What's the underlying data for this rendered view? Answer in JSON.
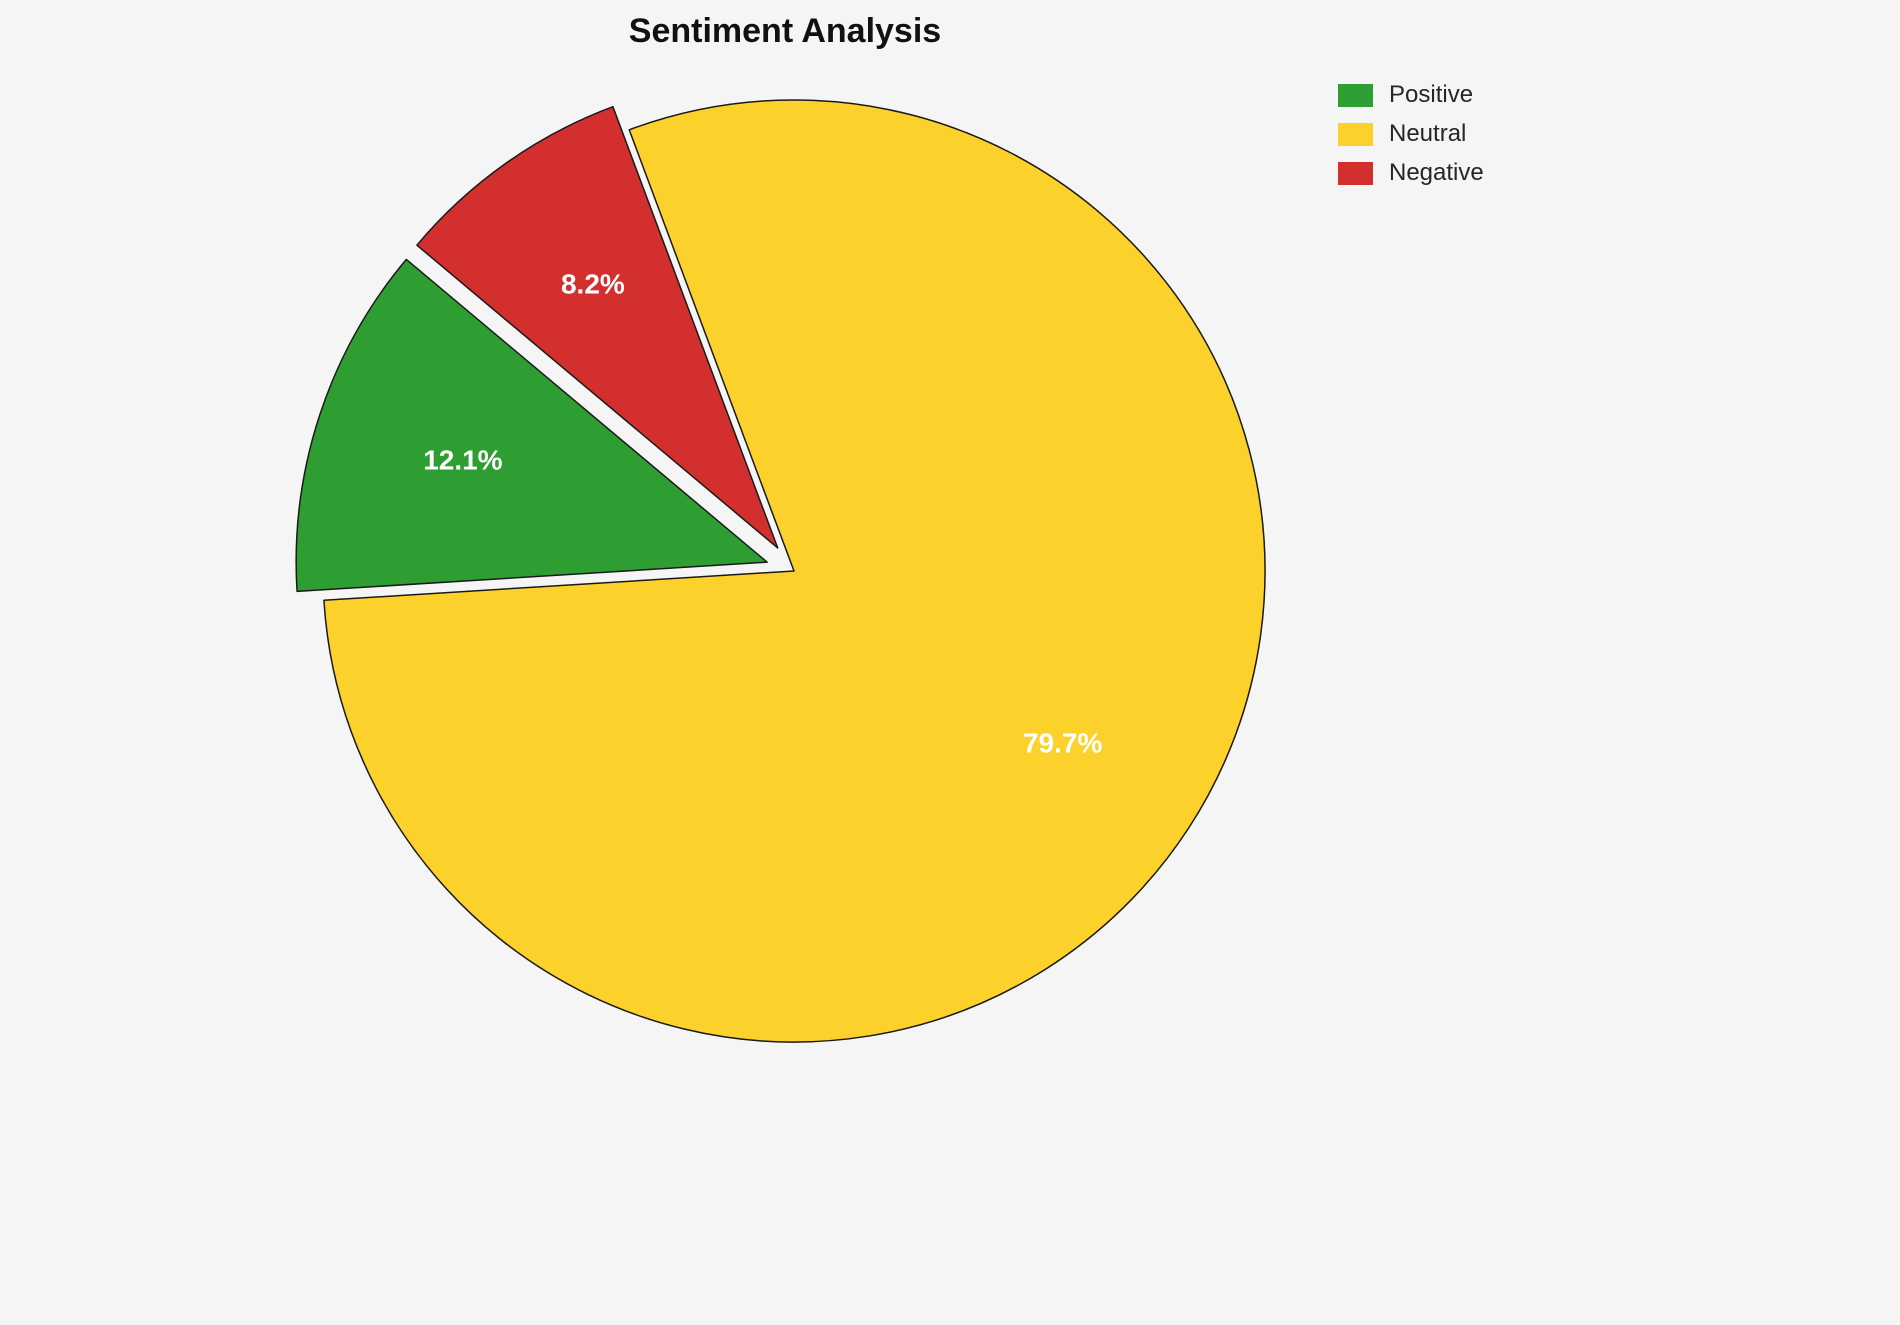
{
  "title": "Sentiment Analysis",
  "chart_data": {
    "type": "pie",
    "title": "Sentiment Analysis",
    "total": 100,
    "slices": [
      {
        "label": "Positive",
        "value": 12.1,
        "pct_label": "12.1%",
        "color": "#2E9E33",
        "explode": 0.06
      },
      {
        "label": "Neutral",
        "value": 79.7,
        "pct_label": "79.7%",
        "color": "#FCD12B",
        "explode": 0
      },
      {
        "label": "Negative",
        "value": 8.2,
        "pct_label": "8.2%",
        "color": "#D32F2F",
        "explode": 0.06
      }
    ],
    "start_angle": 140,
    "direction": "counterclockwise",
    "slice_edge_color": "#1a1a1a",
    "slice_label_color": "#ffffff",
    "background": "#f5f5f5",
    "legend": {
      "position": "upper right",
      "entries": [
        {
          "label": "Positive",
          "color": "#2E9E33"
        },
        {
          "label": "Neutral",
          "color": "#FCD12B"
        },
        {
          "label": "Negative",
          "color": "#D32F2F"
        }
      ]
    }
  }
}
